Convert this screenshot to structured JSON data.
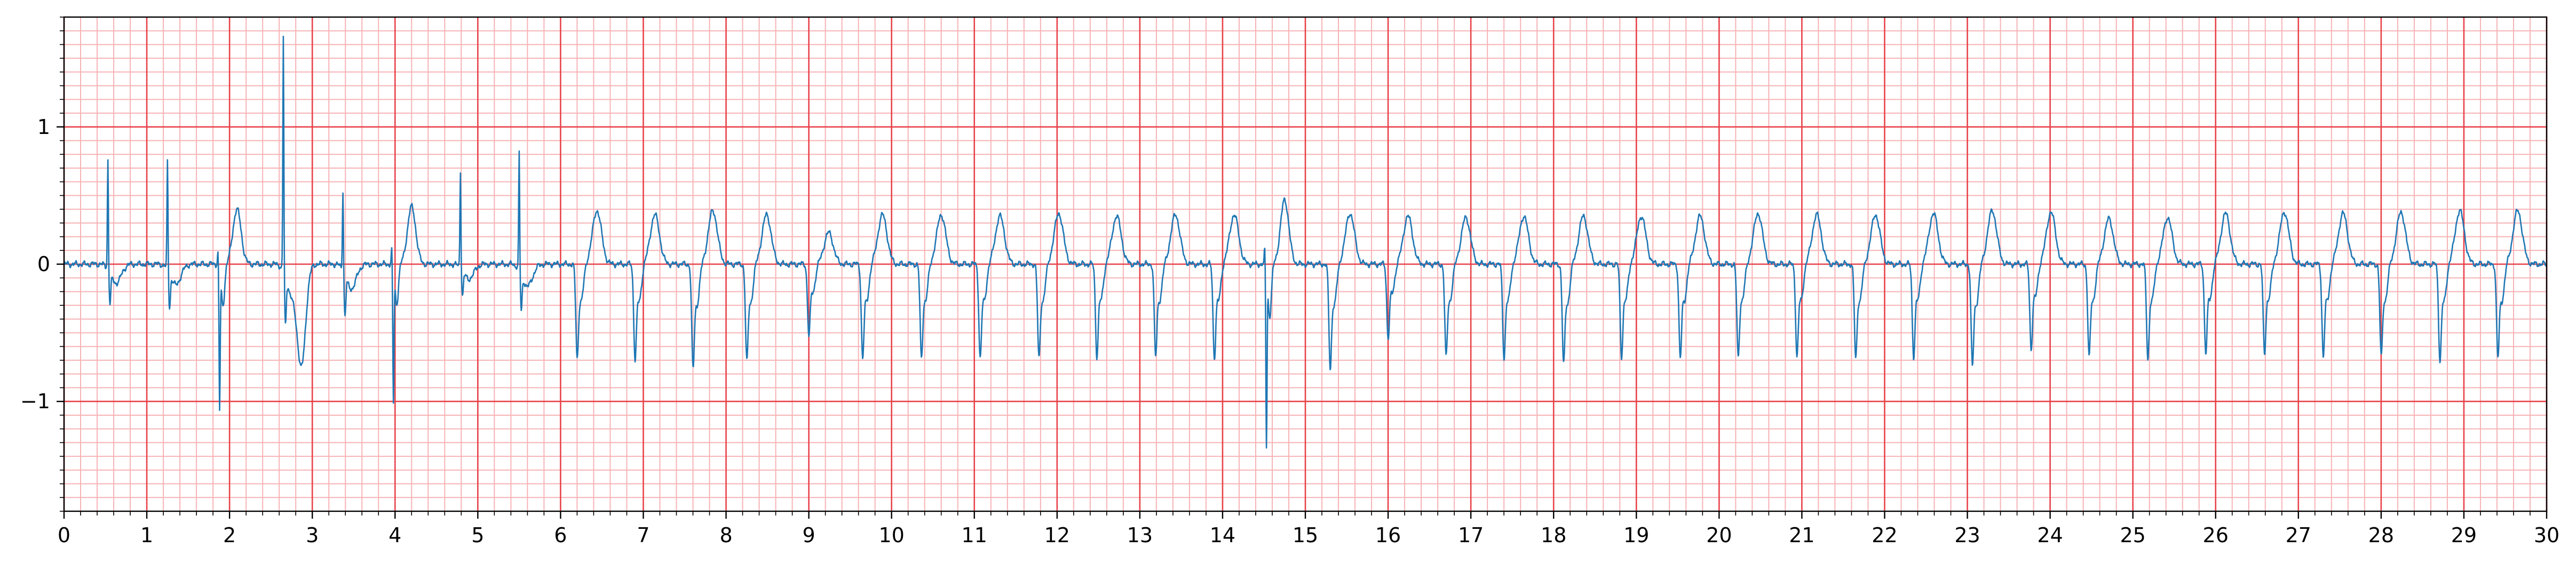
{
  "chart_data": {
    "type": "line",
    "title": "",
    "xlabel": "",
    "ylabel": "",
    "xlim": [
      0,
      30
    ],
    "ylim": [
      -1.8,
      1.8
    ],
    "x_ticks": [
      0,
      1,
      2,
      3,
      4,
      5,
      6,
      7,
      8,
      9,
      10,
      11,
      12,
      13,
      14,
      15,
      16,
      17,
      18,
      19,
      20,
      21,
      22,
      23,
      24,
      25,
      26,
      27,
      28,
      29,
      30
    ],
    "x_tick_labels": [
      "0",
      "1",
      "2",
      "3",
      "4",
      "5",
      "6",
      "7",
      "8",
      "9",
      "10",
      "11",
      "12",
      "13",
      "14",
      "15",
      "16",
      "17",
      "18",
      "19",
      "20",
      "21",
      "22",
      "23",
      "24",
      "25",
      "26",
      "27",
      "28",
      "29",
      "30"
    ],
    "y_ticks": [
      -1,
      0,
      1
    ],
    "y_tick_labels": [
      "−1",
      "0",
      "1"
    ],
    "grid": {
      "major_x_step": 1,
      "major_y_step": 1,
      "minor_x_step": 0.2,
      "minor_y_step": 0.1
    },
    "colors": {
      "trace": "#1f77b4",
      "grid_major": "#e8424a",
      "grid_minor": "#f6b3b6",
      "axes": "#000000"
    },
    "events": [
      {
        "t": 0.53,
        "kind": "spike",
        "amp": 0.8,
        "min": -0.23
      },
      {
        "t": 1.25,
        "kind": "spike",
        "amp": 0.8,
        "min": -0.25
      },
      {
        "t": 1.88,
        "kind": "drop",
        "amp": 0.1,
        "min": -1.03
      },
      {
        "t": 2.09,
        "kind": "wave",
        "amp": 0.4,
        "min": -0.05
      },
      {
        "t": 2.65,
        "kind": "spike",
        "amp": 1.72,
        "min": -0.35
      },
      {
        "t": 2.87,
        "kind": "dip",
        "amp": 0.0,
        "min": -0.72
      },
      {
        "t": 3.37,
        "kind": "spike",
        "amp": 0.6,
        "min": -0.3
      },
      {
        "t": 3.98,
        "kind": "drop",
        "amp": 0.12,
        "min": -0.98
      },
      {
        "t": 4.2,
        "kind": "wave",
        "amp": 0.42,
        "min": -0.05
      },
      {
        "t": 4.79,
        "kind": "spike",
        "amp": 0.71,
        "min": -0.18
      },
      {
        "t": 5.5,
        "kind": "spike",
        "amp": 0.86,
        "min": -0.27
      },
      {
        "t": 6.2,
        "kind": "beat",
        "amp": 0.39,
        "min": -0.63
      },
      {
        "t": 6.9,
        "kind": "beat",
        "amp": 0.36,
        "min": -0.64
      },
      {
        "t": 7.6,
        "kind": "beat",
        "amp": 0.39,
        "min": -0.7
      },
      {
        "t": 8.25,
        "kind": "beat",
        "amp": 0.36,
        "min": -0.65
      },
      {
        "t": 9.0,
        "kind": "beat",
        "amp": 0.23,
        "min": -0.48
      },
      {
        "t": 9.65,
        "kind": "beat",
        "amp": 0.36,
        "min": -0.63
      },
      {
        "t": 10.36,
        "kind": "beat",
        "amp": 0.36,
        "min": -0.63
      },
      {
        "t": 11.07,
        "kind": "beat",
        "amp": 0.35,
        "min": -0.63
      },
      {
        "t": 11.78,
        "kind": "beat",
        "amp": 0.37,
        "min": -0.63
      },
      {
        "t": 12.48,
        "kind": "beat",
        "amp": 0.35,
        "min": -0.62
      },
      {
        "t": 13.19,
        "kind": "beat",
        "amp": 0.36,
        "min": -0.62
      },
      {
        "t": 13.9,
        "kind": "beat",
        "amp": 0.36,
        "min": -0.63
      },
      {
        "t": 14.53,
        "kind": "drop",
        "amp": 0.12,
        "min": -1.28
      },
      {
        "t": 14.75,
        "kind": "wave",
        "amp": 0.47,
        "min": -0.05
      },
      {
        "t": 15.3,
        "kind": "beat",
        "amp": 0.37,
        "min": -0.7
      },
      {
        "t": 16.0,
        "kind": "beat",
        "amp": 0.35,
        "min": -0.5
      },
      {
        "t": 16.7,
        "kind": "beat",
        "amp": 0.34,
        "min": -0.62
      },
      {
        "t": 17.4,
        "kind": "beat",
        "amp": 0.35,
        "min": -0.63
      },
      {
        "t": 18.12,
        "kind": "beat",
        "amp": 0.35,
        "min": -0.67
      },
      {
        "t": 18.82,
        "kind": "beat",
        "amp": 0.35,
        "min": -0.62
      },
      {
        "t": 19.53,
        "kind": "beat",
        "amp": 0.35,
        "min": -0.63
      },
      {
        "t": 20.23,
        "kind": "beat",
        "amp": 0.37,
        "min": -0.62
      },
      {
        "t": 20.94,
        "kind": "beat",
        "amp": 0.36,
        "min": -0.62
      },
      {
        "t": 21.65,
        "kind": "beat",
        "amp": 0.36,
        "min": -0.63
      },
      {
        "t": 22.35,
        "kind": "beat",
        "amp": 0.37,
        "min": -0.62
      },
      {
        "t": 23.06,
        "kind": "beat",
        "amp": 0.39,
        "min": -0.68
      },
      {
        "t": 23.77,
        "kind": "beat",
        "amp": 0.38,
        "min": -0.57
      },
      {
        "t": 24.47,
        "kind": "beat",
        "amp": 0.33,
        "min": -0.62
      },
      {
        "t": 25.18,
        "kind": "beat",
        "amp": 0.34,
        "min": -0.63
      },
      {
        "t": 25.88,
        "kind": "beat",
        "amp": 0.37,
        "min": -0.6
      },
      {
        "t": 26.59,
        "kind": "beat",
        "amp": 0.38,
        "min": -0.6
      },
      {
        "t": 27.3,
        "kind": "beat",
        "amp": 0.37,
        "min": -0.62
      },
      {
        "t": 28.0,
        "kind": "beat",
        "amp": 0.38,
        "min": -0.62
      },
      {
        "t": 28.71,
        "kind": "beat",
        "amp": 0.39,
        "min": -0.65
      },
      {
        "t": 29.41,
        "kind": "beat",
        "amp": 0.39,
        "min": -0.63
      }
    ]
  }
}
